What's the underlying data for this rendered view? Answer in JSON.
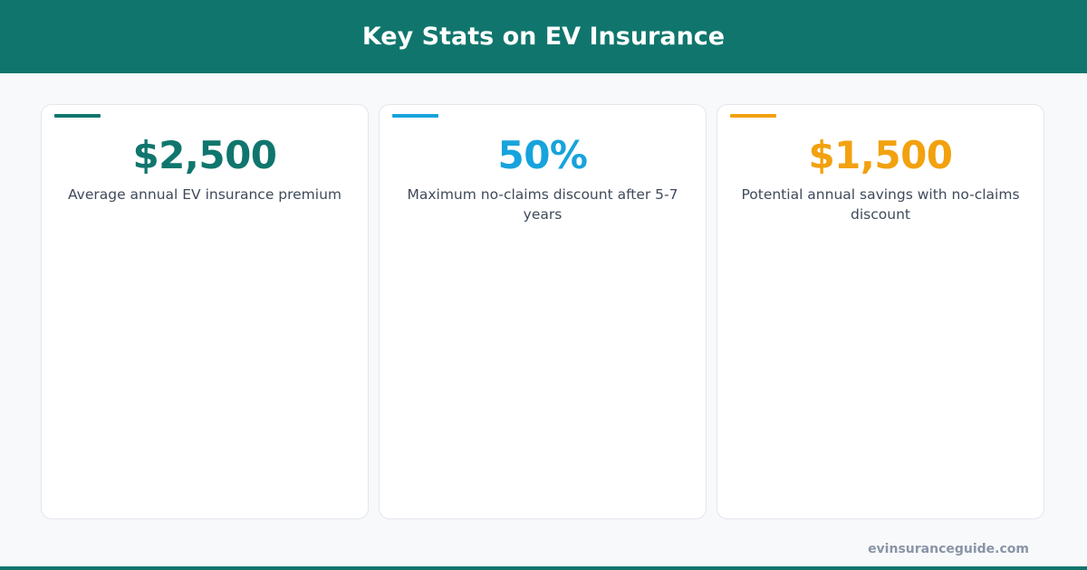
{
  "header": {
    "title": "Key Stats on EV Insurance"
  },
  "colors": {
    "brand": "#10766d",
    "blue": "#17a3dc",
    "orange": "#f2a10f"
  },
  "cards": [
    {
      "value": "$2,500",
      "description": "Average annual EV insurance premium",
      "accent": "#10766d"
    },
    {
      "value": "50%",
      "description": "Maximum no-claims discount after 5-7 years",
      "accent": "#17a3dc"
    },
    {
      "value": "$1,500",
      "description": "Potential annual savings with no-claims discount",
      "accent": "#f2a10f"
    }
  ],
  "footer": {
    "site": "evinsuranceguide.com"
  }
}
